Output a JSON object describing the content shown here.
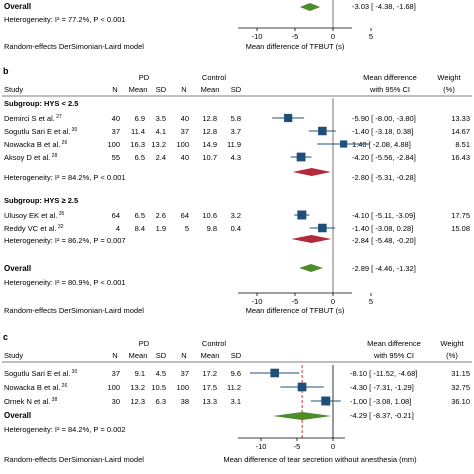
{
  "panels": [
    {
      "label": "",
      "overall_label": "Overall",
      "overall_heterogeneity": "Heterogeneity: I² = 77.2%, P < 0.001",
      "model_note": "Random-effects DerSimonian-Laird model",
      "overall_estimate": "-3.03 [ -4.38,  -1.68]"
    },
    {
      "label": "b",
      "header": {
        "group1": "PD",
        "group2": "Control",
        "study": "Study",
        "n1": "N",
        "mean1": "Mean",
        "sd1": "SD",
        "n2": "N",
        "mean2": "Mean",
        "sd2": "SD",
        "md_line1": "Mean difference",
        "md_line2": "with 95% CI",
        "weight_line1": "Weight",
        "weight_line2": "(%)"
      },
      "subgroups": [
        {
          "title": "Subgroup: HYS < 2.5",
          "rows": [
            {
              "study": "Demirci S et al.",
              "ref": "27",
              "n1": "40",
              "mean1": "6.9",
              "sd1": "3.5",
              "n2": "40",
              "mean2": "12.8",
              "sd2": "5.8",
              "ci_text": "-5.90 [ -8.00,  -3.80]",
              "weight": "13.33"
            },
            {
              "study": "Sogutlu Sari E et al.",
              "ref": "30",
              "n1": "37",
              "mean1": "11.4",
              "sd1": "4.1",
              "n2": "37",
              "mean2": "12.8",
              "sd2": "3.7",
              "ci_text": "-1.40 [ -3.18,  0.38]",
              "weight": "14.67"
            },
            {
              "study": "Nowacka B et al.",
              "ref": "26",
              "n1": "100",
              "mean1": "16.3",
              "sd1": "13.2",
              "n2": "100",
              "mean2": "14.9",
              "sd2": "11.9",
              "ci_text": "1.40 [ -2.08,  4.88]",
              "weight": "8.51"
            },
            {
              "study": "Aksoy D et al.",
              "ref": "28",
              "n1": "55",
              "mean1": "6.5",
              "sd1": "2.4",
              "n2": "40",
              "mean2": "10.7",
              "sd2": "4.3",
              "ci_text": "-4.20 [ -5.56, -2.84]",
              "weight": "16.43"
            }
          ],
          "heterogeneity": "Heterogeneity: I² = 84.2%, P < 0.001",
          "summary_text": "-2.80 [ -5.31, -0.28]"
        },
        {
          "title": "Subgroup: HYS ≥ 2.5",
          "rows": [
            {
              "study": "Ulusoy EK et al.",
              "ref": "35",
              "n1": "64",
              "mean1": "6.5",
              "sd1": "2.6",
              "n2": "64",
              "mean2": "10.6",
              "sd2": "3.2",
              "ci_text": "-4.10 [ -5.11, -3.09]",
              "weight": "17.75"
            },
            {
              "study": "Reddy VC et al.",
              "ref": "32",
              "n1": "4",
              "mean1": "8.4",
              "sd1": "1.9",
              "n2": "5",
              "mean2": "9.8",
              "sd2": "0.4",
              "ci_text": "-1.40 [ -3.08,  0.28]",
              "weight": "15.08"
            }
          ],
          "heterogeneity": "Heterogeneity: I² = 86.2%, P = 0.007",
          "summary_text": "-2.84 [ -5.48, -0.20]"
        }
      ],
      "overall_label": "Overall",
      "overall_heterogeneity": "Heterogeneity: I² = 80.9%, P < 0.001",
      "overall_text": "-2.89 [ -4.46,  -1.32]",
      "model_note": "Random-effects DerSimonian-Laird model"
    },
    {
      "label": "c",
      "header": {
        "group1": "PD",
        "group2": "Control",
        "study": "Study",
        "n1": "N",
        "mean1": "Mean",
        "sd1": "SD",
        "n2": "N",
        "mean2": "Mean",
        "sd2": "SD",
        "md_line1": "Mean difference",
        "md_line2": "with 95% CI",
        "weight_line1": "Weight",
        "weight_line2": "(%)"
      },
      "rows": [
        {
          "study": "Sogutlu Sari E et al.",
          "ref": "30",
          "n1": "37",
          "mean1": "9.1",
          "sd1": "4.5",
          "n2": "37",
          "mean2": "17.2",
          "sd2": "9.6",
          "ci_text": "-8.10 [ -11.52, -4.68]",
          "weight": "31.15"
        },
        {
          "study": "Nowacka B et al.",
          "ref": "26",
          "n1": "100",
          "mean1": "13.2",
          "sd1": "10.5",
          "n2": "100",
          "mean2": "17.5",
          "sd2": "11.2",
          "ci_text": "-4.30 [ -7.31, -1.29]",
          "weight": "32.75"
        },
        {
          "study": "Ornek N et al.",
          "ref": "38",
          "n1": "30",
          "mean1": "12.3",
          "sd1": "6.3",
          "n2": "38",
          "mean2": "13.3",
          "sd2": "3.1",
          "ci_text": "-1.00 [ -3.08,  1.08]",
          "weight": "36.10"
        }
      ],
      "overall_label": "Overall",
      "overall_heterogeneity": "Heterogeneity: I² = 84.2%, P = 0.002",
      "overall_text": "-4.29 [ -8.37, -0.21]",
      "model_note": "Random-effects DerSimonian-Laird model"
    }
  ],
  "chart_data": [
    {
      "type": "forest",
      "panel": "a",
      "xlabel": "Mean difference of TFBUT (s)",
      "xticks": [
        -10,
        -5,
        0,
        5
      ],
      "xlim": [
        -10,
        5
      ],
      "studies": [],
      "overall": {
        "estimate": -3.03,
        "lower": -4.38,
        "upper": -1.68
      }
    },
    {
      "type": "forest",
      "panel": "b",
      "xlabel": "Mean difference of TFBUT (s)",
      "xticks": [
        -10,
        -5,
        0,
        5
      ],
      "xlim": [
        -10,
        5
      ],
      "reference_line": 0,
      "subgroups": [
        {
          "name": "Subgroup: HYS < 2.5",
          "studies": [
            {
              "estimate": -5.9,
              "lower": -8.0,
              "upper": -3.8,
              "weight": 13.33
            },
            {
              "estimate": -1.4,
              "lower": -3.18,
              "upper": 0.38,
              "weight": 14.67
            },
            {
              "estimate": 1.4,
              "lower": -2.08,
              "upper": 4.88,
              "weight": 8.51
            },
            {
              "estimate": -4.2,
              "lower": -5.56,
              "upper": -2.84,
              "weight": 16.43
            }
          ],
          "summary": {
            "estimate": -2.8,
            "lower": -5.31,
            "upper": -0.28
          }
        },
        {
          "name": "Subgroup: HYS ≥ 2.5",
          "studies": [
            {
              "estimate": -4.1,
              "lower": -5.11,
              "upper": -3.09,
              "weight": 17.75
            },
            {
              "estimate": -1.4,
              "lower": -3.08,
              "upper": 0.28,
              "weight": 15.08
            }
          ],
          "summary": {
            "estimate": -2.84,
            "lower": -5.48,
            "upper": -0.2
          }
        }
      ],
      "overall": {
        "estimate": -2.89,
        "lower": -4.46,
        "upper": -1.32
      }
    },
    {
      "type": "forest",
      "panel": "c",
      "xlabel": "Mean difference of tear secretion without anesthesia (mm)",
      "xticks": [
        -10,
        -5,
        0
      ],
      "xlim": [
        -12,
        2
      ],
      "reference_line": 0,
      "studies": [
        {
          "estimate": -8.1,
          "lower": -11.52,
          "upper": -4.68,
          "weight": 31.15
        },
        {
          "estimate": -4.3,
          "lower": -7.31,
          "upper": -1.29,
          "weight": 32.75
        },
        {
          "estimate": -1.0,
          "lower": -3.08,
          "upper": 1.08,
          "weight": 36.1
        }
      ],
      "overall": {
        "estimate": -4.29,
        "lower": -8.37,
        "upper": -0.21
      }
    }
  ],
  "colors": {
    "study_marker": "#1f4e79",
    "subgroup_diamond": "#b22a3c",
    "overall_diamond": "#4c8c2b",
    "reference_line": "#555555",
    "overall_line": "#cc0000"
  }
}
